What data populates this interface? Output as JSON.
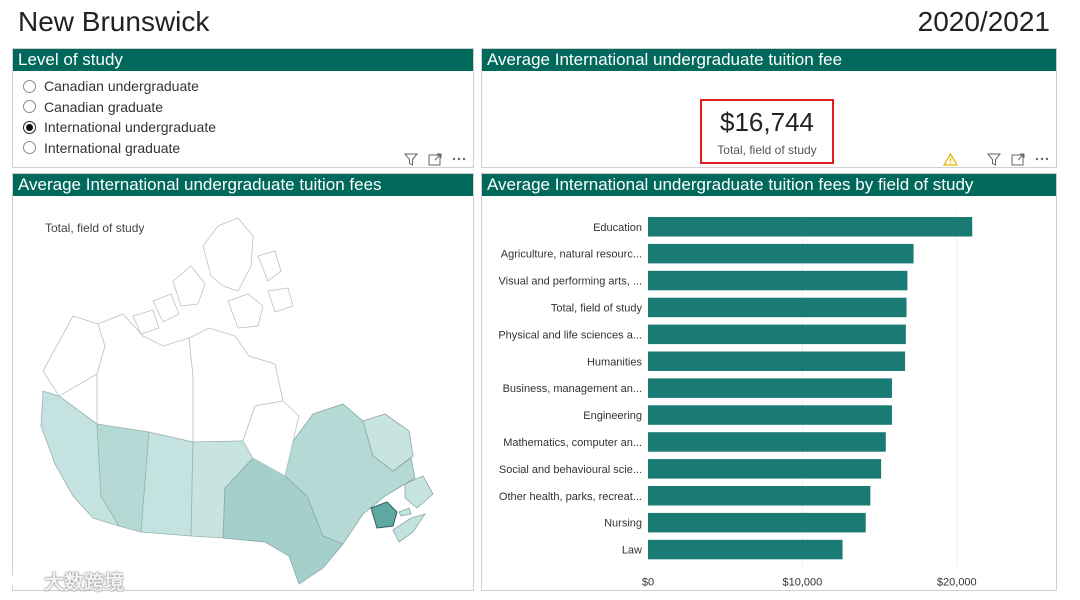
{
  "header": {
    "title": "New Brunswick",
    "year": "2020/2021"
  },
  "level_panel": {
    "title": "Level of study",
    "options": [
      {
        "label": "Canadian undergraduate",
        "selected": false
      },
      {
        "label": "Canadian graduate",
        "selected": false
      },
      {
        "label": "International undergraduate",
        "selected": true
      },
      {
        "label": "International graduate",
        "selected": false
      }
    ],
    "tools": [
      "filter-icon",
      "focus-mode-icon",
      "more-options-icon"
    ]
  },
  "kpi_panel": {
    "title": "Average International undergraduate tuition fee",
    "value": "$16,744",
    "subtitle": "Total, field of study",
    "tools": [
      "warning-icon",
      "filter-icon",
      "focus-mode-icon",
      "more-options-icon"
    ]
  },
  "map_panel": {
    "title": "Average International undergraduate tuition fees",
    "subtitle": "Total, field of study",
    "colors": {
      "highlight": "#5fa8a2",
      "mid": "#a4cfcb",
      "light": "#c4e2df",
      "none": "#ffffff",
      "stroke": "#9ab"
    }
  },
  "bar_panel": {
    "title": "Average International undergraduate tuition fees by field of study"
  },
  "chart_data": {
    "type": "bar",
    "orientation": "horizontal",
    "categories": [
      "Education",
      "Agriculture, natural resourc...",
      "Visual and performing arts, ...",
      "Total, field of study",
      "Physical and life sciences a...",
      "Humanities",
      "Business, management an...",
      "Engineering",
      "Mathematics, computer an...",
      "Social and behavioural scie...",
      "Other health, parks, recreat...",
      "Nursing",
      "Law"
    ],
    "values": [
      21000,
      17200,
      16800,
      16744,
      16700,
      16650,
      15800,
      15800,
      15400,
      15100,
      14400,
      14100,
      12600
    ],
    "xlim": [
      0,
      25000
    ],
    "xticks": [
      0,
      10000,
      20000
    ],
    "xtick_labels": [
      "$0",
      "$10,000",
      "$20,000"
    ],
    "bar_color": "#1a7a74",
    "grid": true
  },
  "watermark": {
    "text": "大数跨境"
  }
}
